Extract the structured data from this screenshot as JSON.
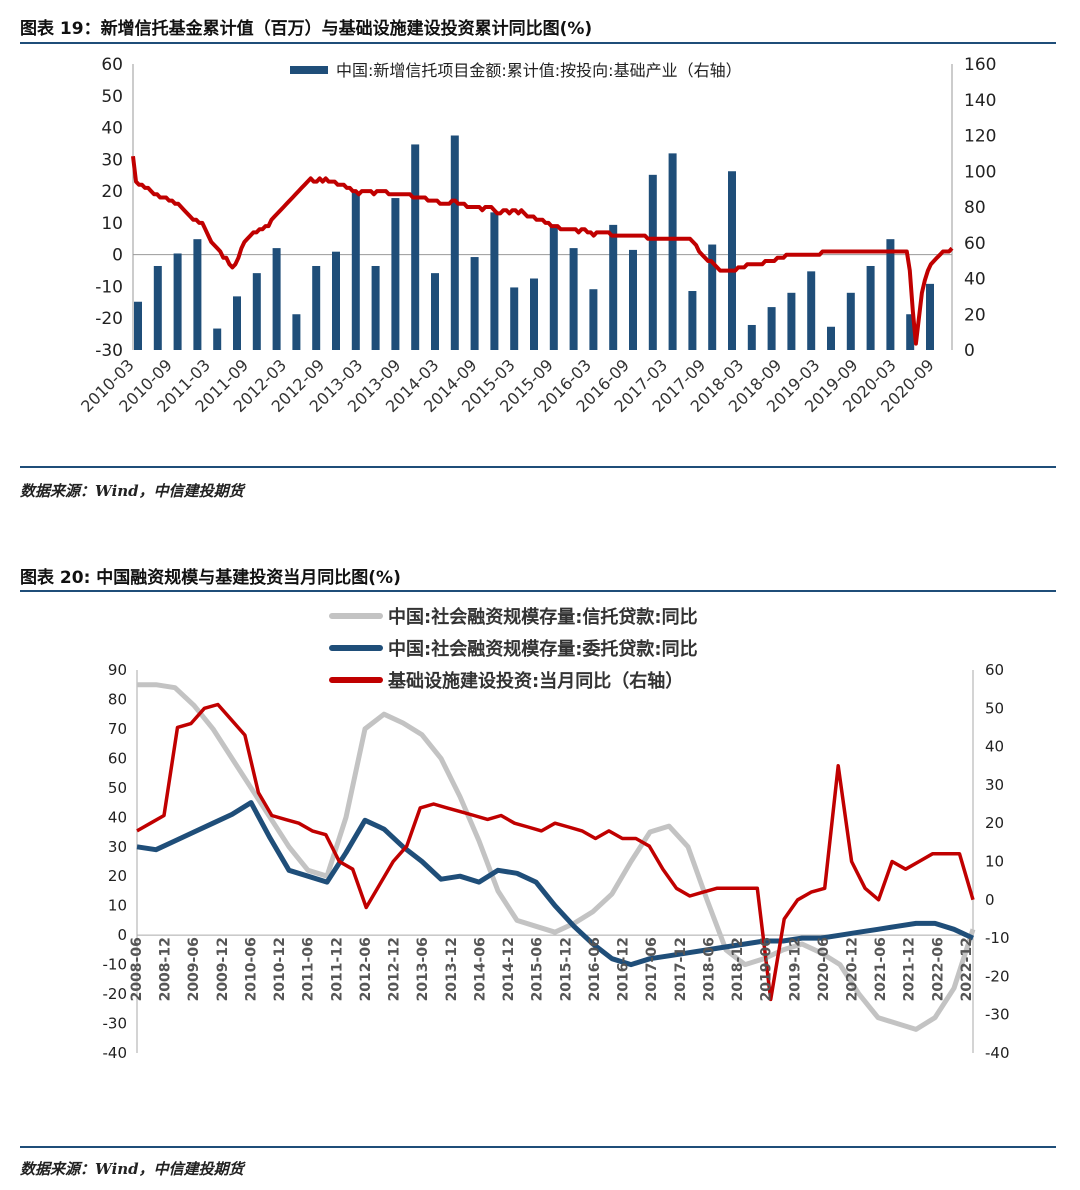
{
  "figure19": {
    "title": "图表 19：新增信托基金累计值（百万）与基础设施建设投资累计同比图(%)",
    "source": "数据来源：Wind，中信建投期货",
    "chart_data": {
      "type": "bar",
      "left_axis": {
        "ticks": [
          60,
          50,
          40,
          30,
          20,
          10,
          0,
          -10,
          -20,
          -30
        ],
        "range": [
          -30,
          60
        ]
      },
      "right_axis": {
        "ticks": [
          160,
          140,
          120,
          100,
          80,
          60,
          40,
          20,
          0
        ],
        "range": [
          0,
          160
        ]
      },
      "x_labels": [
        "2010-03",
        "2010-09",
        "2011-03",
        "2011-09",
        "2012-03",
        "2012-09",
        "2013-03",
        "2013-09",
        "2014-03",
        "2014-09",
        "2015-03",
        "2015-09",
        "2016-03",
        "2016-09",
        "2017-03",
        "2017-09",
        "2018-03",
        "2018-09",
        "2019-03",
        "2019-09",
        "2020-03",
        "2020-09"
      ],
      "series": [
        {
          "name": "中国:新增信托项目金额:累计值:按投向:基础产业（右轴）",
          "axis": "right",
          "kind": "bar",
          "color": "#1f4e79",
          "values": [
            27,
            47,
            54,
            62,
            12,
            30,
            43,
            57,
            20,
            47,
            55,
            88,
            47,
            85,
            115,
            43,
            120,
            52,
            77,
            35,
            40,
            70,
            57,
            34,
            70,
            56,
            98,
            110,
            33,
            59,
            100,
            14,
            24,
            32,
            44,
            13,
            32,
            47,
            62,
            20,
            37
          ]
        },
        {
          "name": "基础设施建设投资累计同比",
          "axis": "left",
          "kind": "line",
          "color": "#c00000",
          "values": [
            31,
            23,
            22,
            22,
            21,
            21,
            20,
            19,
            19,
            18,
            18,
            18,
            17,
            17,
            16,
            16,
            15,
            14,
            13,
            12,
            11,
            11,
            10,
            10,
            8,
            6,
            4,
            3,
            2,
            1,
            -1,
            -1,
            -3,
            -4,
            -3,
            -1,
            2,
            4,
            5,
            6,
            7,
            7,
            8,
            8,
            9,
            9,
            11,
            12,
            13,
            14,
            15,
            16,
            17,
            18,
            19,
            20,
            21,
            22,
            23,
            24,
            23,
            23,
            24,
            23,
            24,
            23,
            23,
            23,
            22,
            22,
            22,
            21,
            21,
            20,
            20,
            19,
            20,
            20,
            20,
            20,
            19,
            20,
            20,
            20,
            20,
            19,
            19,
            19,
            19,
            19,
            19,
            19,
            19,
            18,
            18,
            18,
            18,
            18,
            17,
            17,
            17,
            17,
            16,
            16,
            16,
            16,
            17,
            17,
            16,
            16,
            16,
            15,
            15,
            15,
            15,
            15,
            14,
            15,
            15,
            15,
            14,
            13,
            13,
            14,
            14,
            13,
            14,
            14,
            13,
            14,
            13,
            12,
            12,
            12,
            11,
            11,
            11,
            10,
            10,
            9,
            9,
            9,
            8,
            8,
            8,
            8,
            8,
            8,
            7,
            8,
            8,
            7,
            7,
            6,
            7,
            7,
            7,
            7,
            7,
            6,
            6,
            6,
            6,
            6,
            6,
            6,
            6,
            6,
            6,
            6,
            6,
            5,
            5,
            5,
            5,
            5,
            5,
            5,
            5,
            5,
            5,
            5,
            5,
            5,
            5,
            5,
            4,
            3,
            1,
            0,
            -1,
            -2,
            -2,
            -3,
            -4,
            -5,
            -5,
            -5,
            -5,
            -5,
            -5,
            -4,
            -4,
            -4,
            -3,
            -3,
            -3,
            -3,
            -3,
            -3,
            -2,
            -2,
            -2,
            -2,
            -1,
            -1,
            -1,
            0,
            0,
            0,
            0,
            0,
            0,
            0,
            0,
            0,
            0,
            0,
            0,
            1,
            1,
            1,
            1,
            1,
            1,
            1,
            1,
            1,
            1,
            1,
            1,
            1,
            1,
            1,
            1,
            1,
            1,
            1,
            1,
            1,
            1,
            1,
            1,
            1,
            1,
            1,
            1,
            1,
            -5,
            -18,
            -28,
            -20,
            -12,
            -8,
            -5,
            -3,
            -2,
            -1,
            0,
            1,
            1,
            1,
            2
          ]
        }
      ]
    }
  },
  "figure20": {
    "title": "图表 20:  中国融资规模与基建投资当月同比图(%)",
    "source": "数据来源：Wind，中信建投期货",
    "chart_data": {
      "type": "line",
      "left_axis": {
        "ticks": [
          90,
          80,
          70,
          60,
          50,
          40,
          30,
          20,
          10,
          0,
          -10,
          -20,
          -30,
          -40
        ],
        "range": [
          -40,
          90
        ]
      },
      "right_axis": {
        "ticks": [
          60,
          50,
          40,
          30,
          20,
          10,
          0,
          -10,
          -20,
          -30,
          -40
        ],
        "range": [
          -40,
          60
        ]
      },
      "x_labels": [
        "2008-06",
        "2008-12",
        "2009-06",
        "2009-12",
        "2010-06",
        "2010-12",
        "2011-06",
        "2011-12",
        "2012-06",
        "2012-12",
        "2013-06",
        "2013-12",
        "2014-06",
        "2014-12",
        "2015-06",
        "2015-12",
        "2016-06",
        "2016-12",
        "2017-06",
        "2017-12",
        "2018-06",
        "2018-12",
        "2019-06",
        "2019-12",
        "2020-06",
        "2020-12",
        "2021-06",
        "2021-12",
        "2022-06",
        "2022-12"
      ],
      "series": [
        {
          "name": "中国:社会融资规模存量:信托贷款:同比",
          "axis": "left",
          "color": "#c3c3c3",
          "values": [
            85,
            85,
            84,
            78,
            70,
            60,
            50,
            40,
            30,
            22,
            20,
            40,
            70,
            75,
            72,
            68,
            60,
            47,
            32,
            15,
            5,
            3,
            1,
            4,
            8,
            14,
            25,
            35,
            37,
            30,
            12,
            -5,
            -10,
            -8,
            -5,
            -3,
            -6,
            -10,
            -20,
            -28,
            -30,
            -32,
            -28,
            -18,
            2
          ]
        },
        {
          "name": "中国:社会融资规模存量:委托贷款:同比",
          "axis": "left",
          "color": "#1f4e79",
          "values": [
            30,
            29,
            32,
            35,
            38,
            41,
            45,
            33,
            22,
            20,
            18,
            28,
            39,
            36,
            30,
            25,
            19,
            20,
            18,
            22,
            21,
            18,
            10,
            3,
            -3,
            -8,
            -10,
            -8,
            -7,
            -6,
            -5,
            -4,
            -3,
            -2,
            -2,
            -1,
            -1,
            0,
            1,
            2,
            3,
            4,
            4,
            2,
            -1
          ]
        },
        {
          "name": "基础设施建设投资:当月同比（右轴）",
          "axis": "right",
          "color": "#c00000",
          "values": [
            18,
            20,
            22,
            45,
            46,
            50,
            51,
            47,
            43,
            28,
            22,
            21,
            20,
            18,
            17,
            10,
            8,
            -2,
            4,
            10,
            14,
            24,
            25,
            24,
            23,
            22,
            21,
            22,
            20,
            19,
            18,
            20,
            19,
            18,
            16,
            18,
            16,
            16,
            14,
            8,
            3,
            1,
            2,
            3,
            3,
            3,
            3,
            -26,
            -5,
            0,
            2,
            3,
            35,
            10,
            3,
            0,
            10,
            8,
            10,
            12,
            12,
            12,
            0
          ]
        }
      ]
    }
  }
}
